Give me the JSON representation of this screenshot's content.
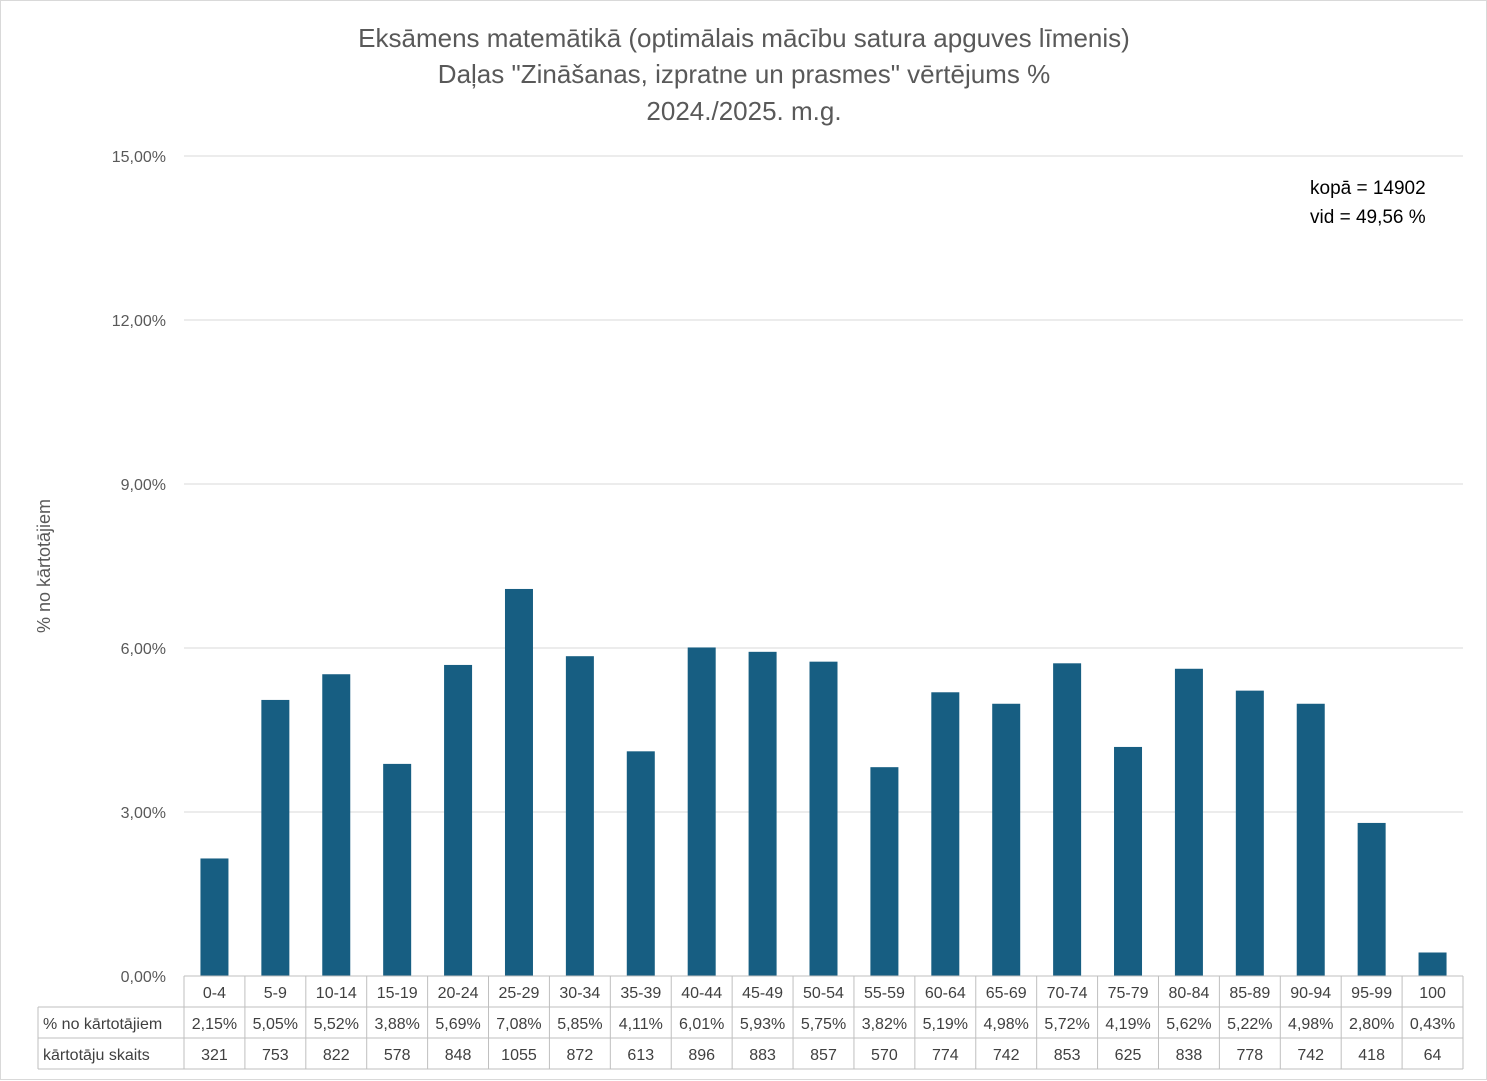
{
  "chart_data": {
    "type": "bar",
    "title": [
      "Eksāmens matemātikā (optimālais mācību satura apguves līmenis)",
      "Daļas \"Zināšanas, izpratne un prasmes\" vērtējums %",
      "2024./2025. m.g."
    ],
    "ylabel": "% no kārtotājiem",
    "ylim": [
      0,
      15
    ],
    "yticks": [
      "0,00%",
      "3,00%",
      "6,00%",
      "9,00%",
      "12,00%",
      "15,00%"
    ],
    "yticks_values": [
      0,
      3,
      6,
      9,
      12,
      15
    ],
    "grid": true,
    "bar_color": "#175e82",
    "categories": [
      "0-4",
      "5-9",
      "10-14",
      "15-19",
      "20-24",
      "25-29",
      "30-34",
      "35-39",
      "40-44",
      "45-49",
      "50-54",
      "55-59",
      "60-64",
      "65-69",
      "70-74",
      "75-79",
      "80-84",
      "85-89",
      "90-94",
      "95-99",
      "100"
    ],
    "series": [
      {
        "name": "% no kārtotājiem",
        "values": [
          2.15,
          5.05,
          5.52,
          3.88,
          5.69,
          7.08,
          5.85,
          4.11,
          6.01,
          5.93,
          5.75,
          3.82,
          5.19,
          4.98,
          5.72,
          4.19,
          5.62,
          5.22,
          4.98,
          2.8,
          0.43
        ],
        "labels": [
          "2,15%",
          "5,05%",
          "5,52%",
          "3,88%",
          "5,69%",
          "7,08%",
          "5,85%",
          "4,11%",
          "6,01%",
          "5,93%",
          "5,75%",
          "3,82%",
          "5,19%",
          "4,98%",
          "5,72%",
          "4,19%",
          "5,62%",
          "5,22%",
          "4,98%",
          "2,80%",
          "0,43%"
        ]
      },
      {
        "name": "kārtotāju skaits",
        "values": [
          "321",
          "753",
          "822",
          "578",
          "848",
          "1055",
          "872",
          "613",
          "896",
          "883",
          "857",
          "570",
          "774",
          "742",
          "853",
          "625",
          "838",
          "778",
          "742",
          "418",
          "64"
        ]
      }
    ],
    "annotations": [
      "kopā = 14902",
      "vid = 49,56 %"
    ]
  }
}
